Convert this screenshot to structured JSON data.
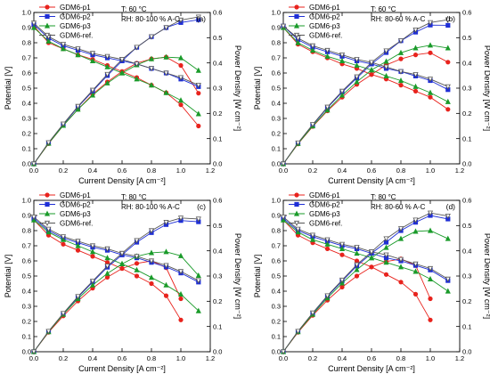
{
  "colors": {
    "p1": "#e8231d",
    "p2": "#1f2fd6",
    "p3": "#1a9b2a",
    "ref": "#555555"
  },
  "chart_data": [
    {
      "type": "line",
      "panel_label": "(a)",
      "annotation": [
        "T: 60 °C",
        "RH: 80-100 % A-C"
      ],
      "xlabel": "Current Density [A cm⁻²]",
      "ylabel": "Potential [V]",
      "y2label": "Power Density [W cm⁻²]",
      "xlim": [
        0,
        1.2
      ],
      "ylim": [
        0,
        1.0
      ],
      "y2lim": [
        0,
        0.6
      ],
      "xticks": [
        "0.0",
        "0.2",
        "0.4",
        "0.6",
        "0.8",
        "1.0",
        "1.2"
      ],
      "yticks": [
        "0.0",
        "0.1",
        "0.2",
        "0.3",
        "0.4",
        "0.5",
        "0.6",
        "0.7",
        "0.8",
        "0.9",
        "1.0"
      ],
      "y2ticks": [
        "0.0",
        "0.1",
        "0.2",
        "0.3",
        "0.4",
        "0.5",
        "0.6"
      ],
      "legend_position": "top-left",
      "series": [
        {
          "name": "GDM6-p1",
          "marker": "circle",
          "x": [
            0,
            0.1,
            0.2,
            0.3,
            0.4,
            0.5,
            0.6,
            0.7,
            0.8,
            0.9,
            1.0,
            1.12
          ],
          "potential": [
            0.91,
            0.8,
            0.76,
            0.72,
            0.69,
            0.65,
            0.61,
            0.57,
            0.52,
            0.47,
            0.39,
            0.25
          ],
          "power": [
            0,
            0.08,
            0.152,
            0.216,
            0.276,
            0.325,
            0.366,
            0.399,
            0.416,
            0.423,
            0.39,
            0.28
          ]
        },
        {
          "name": "GDM6-p2",
          "marker": "square",
          "x": [
            0,
            0.1,
            0.2,
            0.3,
            0.4,
            0.5,
            0.6,
            0.7,
            0.8,
            0.9,
            1.0,
            1.12
          ],
          "potential": [
            0.92,
            0.83,
            0.78,
            0.75,
            0.72,
            0.7,
            0.68,
            0.66,
            0.63,
            0.6,
            0.56,
            0.51
          ],
          "power": [
            0,
            0.083,
            0.156,
            0.225,
            0.288,
            0.35,
            0.408,
            0.462,
            0.504,
            0.54,
            0.56,
            0.571
          ]
        },
        {
          "name": "GDM6-p3",
          "marker": "triangle-up",
          "x": [
            0,
            0.1,
            0.2,
            0.3,
            0.4,
            0.5,
            0.6,
            0.7,
            0.8,
            0.9,
            1.0,
            1.12
          ],
          "potential": [
            0.9,
            0.81,
            0.76,
            0.72,
            0.68,
            0.64,
            0.6,
            0.56,
            0.52,
            0.47,
            0.42,
            0.33
          ],
          "power": [
            0,
            0.081,
            0.152,
            0.216,
            0.272,
            0.32,
            0.36,
            0.392,
            0.416,
            0.423,
            0.42,
            0.37
          ]
        },
        {
          "name": "GDM6-ref.",
          "marker": "triangle-down",
          "x": [
            0,
            0.1,
            0.2,
            0.3,
            0.4,
            0.5,
            0.6,
            0.7,
            0.8,
            0.9,
            1.0,
            1.12
          ],
          "potential": [
            0.93,
            0.84,
            0.79,
            0.76,
            0.73,
            0.71,
            0.69,
            0.66,
            0.63,
            0.6,
            0.57,
            0.52
          ],
          "power": [
            0,
            0.084,
            0.158,
            0.228,
            0.292,
            0.355,
            0.414,
            0.462,
            0.504,
            0.54,
            0.57,
            0.582
          ]
        }
      ]
    },
    {
      "type": "line",
      "panel_label": "(b)",
      "annotation": [
        "T: 60 °C",
        "RH: 80-60 % A-C"
      ],
      "xlabel": "Current Density [A cm⁻²]",
      "ylabel": "Potential [V]",
      "y2label": "Power Density [W cm⁻²]",
      "xlim": [
        0,
        1.2
      ],
      "ylim": [
        0,
        1.0
      ],
      "y2lim": [
        0,
        0.6
      ],
      "xticks": [
        "0.0",
        "0.2",
        "0.4",
        "0.6",
        "0.8",
        "1.0",
        "1.2"
      ],
      "yticks": [
        "0.0",
        "0.1",
        "0.2",
        "0.3",
        "0.4",
        "0.5",
        "0.6",
        "0.7",
        "0.8",
        "0.9",
        "1.0"
      ],
      "y2ticks": [
        "0.0",
        "0.1",
        "0.2",
        "0.3",
        "0.4",
        "0.5",
        "0.6"
      ],
      "legend_position": "top-left",
      "series": [
        {
          "name": "GDM6-p1",
          "marker": "circle",
          "x": [
            0,
            0.1,
            0.2,
            0.3,
            0.4,
            0.5,
            0.6,
            0.7,
            0.8,
            0.9,
            1.0,
            1.12
          ],
          "potential": [
            0.9,
            0.79,
            0.74,
            0.7,
            0.66,
            0.63,
            0.59,
            0.56,
            0.52,
            0.48,
            0.44,
            0.36
          ],
          "power": [
            0,
            0.079,
            0.148,
            0.21,
            0.264,
            0.315,
            0.354,
            0.392,
            0.416,
            0.432,
            0.44,
            0.403
          ]
        },
        {
          "name": "GDM6-p2",
          "marker": "square",
          "x": [
            0,
            0.1,
            0.2,
            0.3,
            0.4,
            0.5,
            0.6,
            0.7,
            0.8,
            0.9,
            1.0,
            1.12
          ],
          "potential": [
            0.91,
            0.82,
            0.77,
            0.74,
            0.71,
            0.68,
            0.66,
            0.63,
            0.61,
            0.58,
            0.55,
            0.49
          ],
          "power": [
            0,
            0.082,
            0.154,
            0.222,
            0.284,
            0.34,
            0.396,
            0.441,
            0.488,
            0.522,
            0.55,
            0.549
          ]
        },
        {
          "name": "GDM6-p3",
          "marker": "triangle-up",
          "x": [
            0,
            0.1,
            0.2,
            0.3,
            0.4,
            0.5,
            0.6,
            0.7,
            0.8,
            0.9,
            1.0,
            1.12
          ],
          "potential": [
            0.9,
            0.8,
            0.75,
            0.71,
            0.68,
            0.65,
            0.62,
            0.58,
            0.55,
            0.51,
            0.47,
            0.41
          ],
          "power": [
            0,
            0.08,
            0.15,
            0.213,
            0.272,
            0.325,
            0.372,
            0.406,
            0.44,
            0.459,
            0.47,
            0.459
          ]
        },
        {
          "name": "GDM6-ref.",
          "marker": "triangle-down",
          "x": [
            0,
            0.1,
            0.2,
            0.3,
            0.4,
            0.5,
            0.6,
            0.7,
            0.8,
            0.9,
            1.0,
            1.12
          ],
          "potential": [
            0.91,
            0.83,
            0.78,
            0.75,
            0.72,
            0.69,
            0.67,
            0.64,
            0.61,
            0.59,
            0.56,
            0.51
          ],
          "power": [
            0,
            0.083,
            0.156,
            0.225,
            0.288,
            0.345,
            0.402,
            0.448,
            0.488,
            0.531,
            0.56,
            0.571
          ]
        }
      ]
    },
    {
      "type": "line",
      "panel_label": "(c)",
      "annotation": [
        "T: 80 °C",
        "RH: 80-100 % A-C"
      ],
      "xlabel": "Current Density [A cm⁻²]",
      "ylabel": "Potential [V]",
      "y2label": "Power Density [W cm⁻²]",
      "xlim": [
        0,
        1.2
      ],
      "ylim": [
        0,
        1.0
      ],
      "y2lim": [
        0,
        0.6
      ],
      "xticks": [
        "0.0",
        "0.2",
        "0.4",
        "0.6",
        "0.8",
        "1.0",
        "1.2"
      ],
      "yticks": [
        "0.0",
        "0.1",
        "0.2",
        "0.3",
        "0.4",
        "0.5",
        "0.6",
        "0.7",
        "0.8",
        "0.9",
        "1.0"
      ],
      "y2ticks": [
        "0.0",
        "0.1",
        "0.2",
        "0.3",
        "0.4",
        "0.5",
        "0.6"
      ],
      "legend_position": "top-left",
      "series": [
        {
          "name": "GDM6-p1",
          "marker": "circle",
          "x": [
            0,
            0.1,
            0.2,
            0.3,
            0.4,
            0.5,
            0.6,
            0.7,
            0.8,
            0.9,
            1.0
          ],
          "potential": [
            0.87,
            0.77,
            0.71,
            0.67,
            0.63,
            0.59,
            0.55,
            0.5,
            0.45,
            0.37,
            0.21
          ],
          "power": [
            0,
            0.077,
            0.142,
            0.201,
            0.252,
            0.295,
            0.33,
            0.35,
            0.36,
            0.333,
            0.21
          ]
        },
        {
          "name": "GDM6-p2",
          "marker": "square",
          "x": [
            0,
            0.1,
            0.2,
            0.3,
            0.4,
            0.5,
            0.6,
            0.7,
            0.8,
            0.9,
            1.0,
            1.12
          ],
          "potential": [
            0.88,
            0.8,
            0.75,
            0.72,
            0.69,
            0.67,
            0.64,
            0.62,
            0.59,
            0.56,
            0.52,
            0.46
          ],
          "power": [
            0,
            0.08,
            0.15,
            0.216,
            0.276,
            0.335,
            0.384,
            0.434,
            0.472,
            0.504,
            0.52,
            0.515
          ]
        },
        {
          "name": "GDM6-p3",
          "marker": "triangle-up",
          "x": [
            0,
            0.1,
            0.2,
            0.3,
            0.4,
            0.5,
            0.6,
            0.7,
            0.8,
            0.9,
            1.0,
            1.12
          ],
          "potential": [
            0.87,
            0.79,
            0.74,
            0.7,
            0.66,
            0.62,
            0.58,
            0.54,
            0.49,
            0.44,
            0.38,
            0.27
          ],
          "power": [
            0,
            0.079,
            0.148,
            0.21,
            0.264,
            0.31,
            0.348,
            0.378,
            0.392,
            0.396,
            0.38,
            0.302
          ]
        },
        {
          "name": "GDM6-ref.",
          "marker": "triangle-down",
          "x": [
            0,
            0.1,
            0.2,
            0.3,
            0.4,
            0.5,
            0.6,
            0.7,
            0.8,
            0.9,
            1.0,
            1.12
          ],
          "potential": [
            0.89,
            0.81,
            0.76,
            0.73,
            0.7,
            0.68,
            0.65,
            0.63,
            0.6,
            0.57,
            0.53,
            0.47
          ],
          "power": [
            0,
            0.081,
            0.152,
            0.219,
            0.28,
            0.34,
            0.39,
            0.441,
            0.48,
            0.513,
            0.53,
            0.526
          ]
        }
      ]
    },
    {
      "type": "line",
      "panel_label": "(d)",
      "annotation": [
        "T: 80 °C",
        "RH: 80-60 % A-C"
      ],
      "xlabel": "Current Density [A cm⁻²]",
      "ylabel": "Potential [V]",
      "y2label": "Power Density [W cm⁻²]",
      "xlim": [
        0,
        1.2
      ],
      "ylim": [
        0,
        1.0
      ],
      "y2lim": [
        0,
        0.6
      ],
      "xticks": [
        "0.0",
        "0.2",
        "0.4",
        "0.6",
        "0.8",
        "1.0",
        "1.2"
      ],
      "yticks": [
        "0.0",
        "0.1",
        "0.2",
        "0.3",
        "0.4",
        "0.5",
        "0.6",
        "0.7",
        "0.8",
        "0.9",
        "1.0"
      ],
      "y2ticks": [
        "0.0",
        "0.1",
        "0.2",
        "0.3",
        "0.4",
        "0.5",
        "0.6"
      ],
      "legend_position": "top-left",
      "series": [
        {
          "name": "GDM6-p1",
          "marker": "circle",
          "x": [
            0,
            0.1,
            0.2,
            0.3,
            0.4,
            0.5,
            0.6,
            0.7,
            0.8,
            0.9,
            1.0
          ],
          "potential": [
            0.87,
            0.77,
            0.72,
            0.68,
            0.64,
            0.6,
            0.56,
            0.51,
            0.46,
            0.38,
            0.21
          ],
          "power": [
            0,
            0.077,
            0.144,
            0.204,
            0.256,
            0.3,
            0.336,
            0.357,
            0.368,
            0.342,
            0.21
          ]
        },
        {
          "name": "GDM6-p2",
          "marker": "square",
          "x": [
            0,
            0.1,
            0.2,
            0.3,
            0.4,
            0.5,
            0.6,
            0.7,
            0.8,
            0.9,
            1.0,
            1.12
          ],
          "potential": [
            0.88,
            0.8,
            0.76,
            0.73,
            0.7,
            0.68,
            0.65,
            0.62,
            0.6,
            0.57,
            0.54,
            0.47
          ],
          "power": [
            0,
            0.08,
            0.152,
            0.219,
            0.28,
            0.34,
            0.39,
            0.434,
            0.48,
            0.513,
            0.54,
            0.526
          ]
        },
        {
          "name": "GDM6-p3",
          "marker": "triangle-up",
          "x": [
            0,
            0.1,
            0.2,
            0.3,
            0.4,
            0.5,
            0.6,
            0.7,
            0.8,
            0.9,
            1.0,
            1.12
          ],
          "potential": [
            0.87,
            0.79,
            0.74,
            0.71,
            0.68,
            0.65,
            0.62,
            0.59,
            0.56,
            0.53,
            0.48,
            0.4
          ],
          "power": [
            0,
            0.079,
            0.148,
            0.213,
            0.272,
            0.325,
            0.372,
            0.413,
            0.448,
            0.477,
            0.48,
            0.448
          ]
        },
        {
          "name": "GDM6-ref.",
          "marker": "triangle-down",
          "x": [
            0,
            0.1,
            0.2,
            0.3,
            0.4,
            0.5,
            0.6,
            0.7,
            0.8,
            0.9,
            1.0,
            1.12
          ],
          "potential": [
            0.89,
            0.81,
            0.77,
            0.74,
            0.71,
            0.69,
            0.66,
            0.64,
            0.61,
            0.58,
            0.55,
            0.48
          ],
          "power": [
            0,
            0.081,
            0.154,
            0.222,
            0.284,
            0.345,
            0.396,
            0.448,
            0.488,
            0.522,
            0.55,
            0.538
          ]
        }
      ]
    }
  ]
}
